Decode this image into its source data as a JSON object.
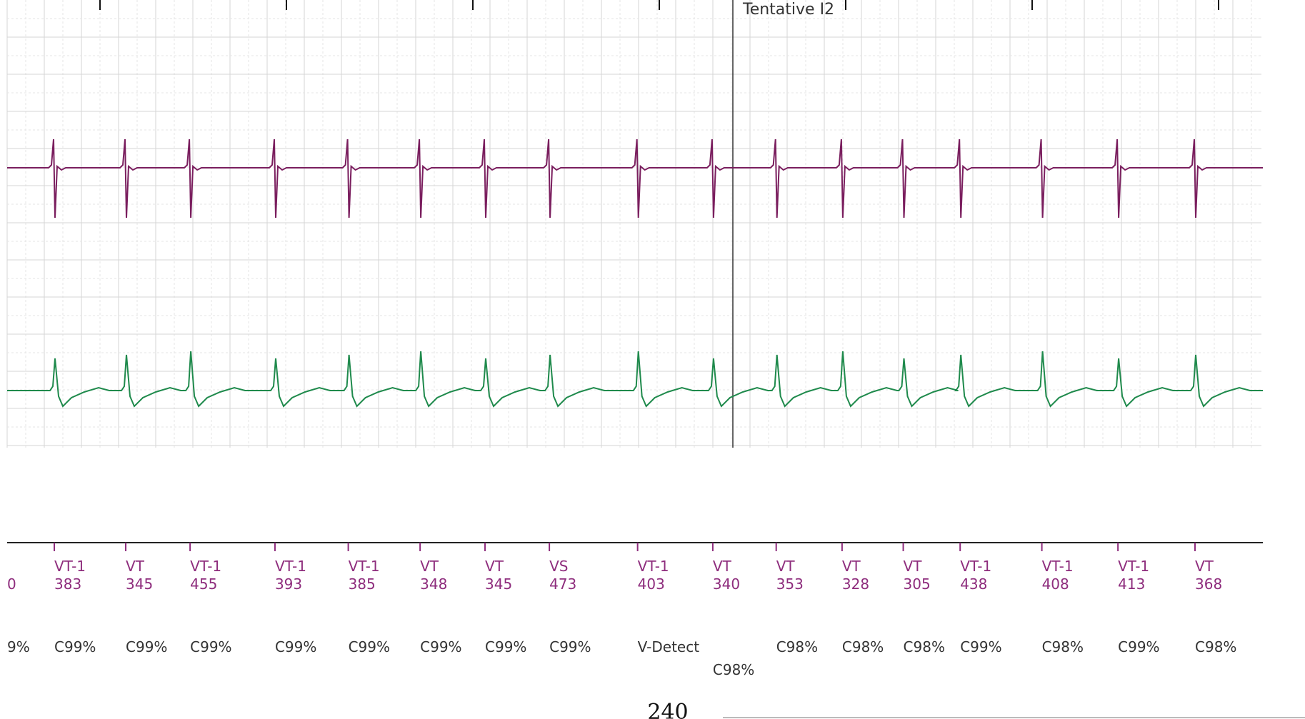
{
  "colors": {
    "atrial": "#7a1e5e",
    "ventricular": "#1f8a4c",
    "markers": "#8e2d7d",
    "grid_major": "#d6d6d6",
    "grid_minor": "#e6e6e6",
    "cursor": "#333333"
  },
  "tentative_label": "Tentative I2",
  "page_number": "240",
  "chart_data": {
    "type": "line",
    "title": "",
    "xlabel": "",
    "ylabel": "",
    "series": [
      {
        "values": [
          383,
          345,
          455,
          393,
          385,
          348,
          345,
          473,
          403,
          340,
          353,
          328,
          305,
          438,
          408,
          413,
          368
        ]
      },
      {
        "values": [
          383,
          345,
          455,
          393,
          385,
          348,
          345,
          473,
          403,
          340,
          353,
          328,
          305,
          438,
          408,
          413,
          368
        ]
      }
    ],
    "markers": [
      {
        "code": "",
        "interval": "0",
        "confidence": "9%"
      },
      {
        "code": "VT-1",
        "interval": "383",
        "confidence": "C99%"
      },
      {
        "code": "VT",
        "interval": "345",
        "confidence": "C99%"
      },
      {
        "code": "VT-1",
        "interval": "455",
        "confidence": "C99%"
      },
      {
        "code": "VT-1",
        "interval": "393",
        "confidence": "C99%"
      },
      {
        "code": "VT-1",
        "interval": "385",
        "confidence": "C99%"
      },
      {
        "code": "VT",
        "interval": "348",
        "confidence": "C99%"
      },
      {
        "code": "VT",
        "interval": "345",
        "confidence": "C99%"
      },
      {
        "code": "VS",
        "interval": "473",
        "confidence": "C99%"
      },
      {
        "code": "VT-1",
        "interval": "403",
        "confidence": "V-Detect"
      },
      {
        "code": "VT",
        "interval": "340",
        "confidence": "C98%"
      },
      {
        "code": "VT",
        "interval": "353",
        "confidence": "C98%"
      },
      {
        "code": "VT",
        "interval": "328",
        "confidence": "C98%"
      },
      {
        "code": "VT",
        "interval": "305",
        "confidence": "C98%"
      },
      {
        "code": "VT-1",
        "interval": "438",
        "confidence": "C99%"
      },
      {
        "code": "VT-1",
        "interval": "408",
        "confidence": "C98%"
      },
      {
        "code": "VT-1",
        "interval": "413",
        "confidence": "C99%"
      },
      {
        "code": "VT",
        "interval": "368",
        "confidence": "C98%"
      }
    ],
    "grid": true,
    "legend": "none"
  }
}
